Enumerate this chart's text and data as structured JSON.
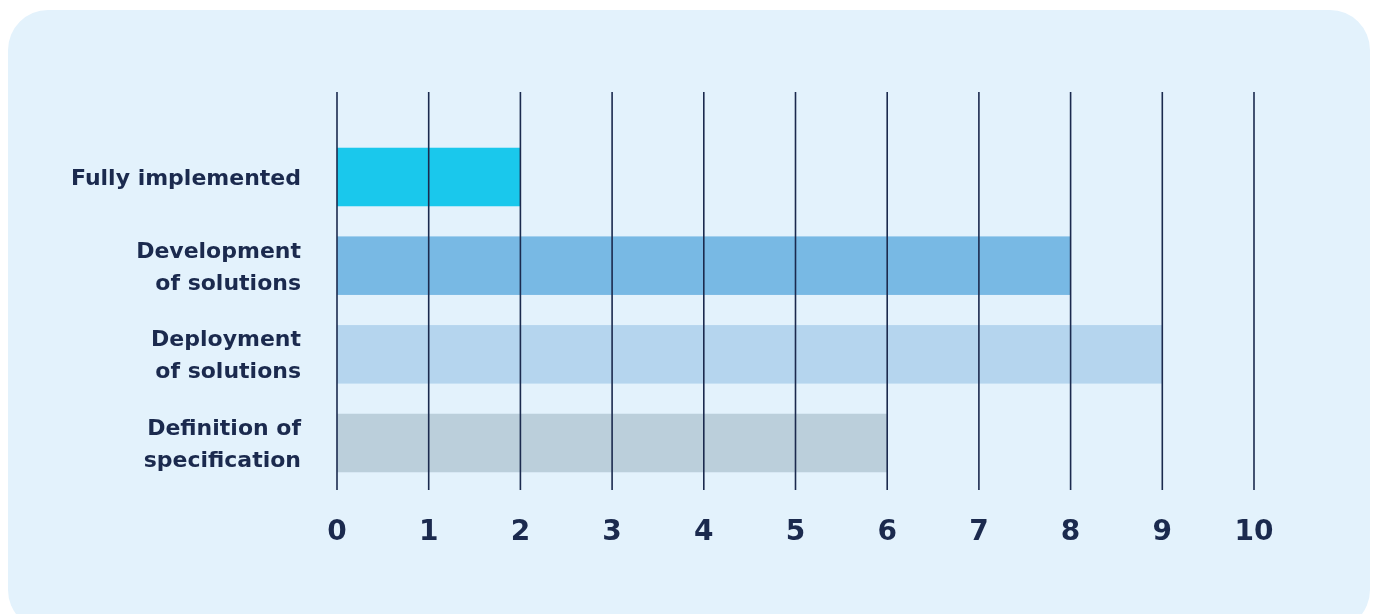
{
  "chart_data": {
    "type": "bar",
    "orientation": "horizontal",
    "categories": [
      "Fully implemented",
      "Development\nof solutions",
      "Deployment\nof solutions",
      "Definition of\nspecification"
    ],
    "values": [
      2,
      8,
      9,
      6
    ],
    "colors": [
      "#1ac8ec",
      "#78b9e4",
      "#b5d5ee",
      "#bbcfdb"
    ],
    "xlim": [
      0,
      10
    ],
    "xticks": [
      0,
      1,
      2,
      3,
      4,
      5,
      6,
      7,
      8,
      9,
      10
    ],
    "grid": "x"
  }
}
